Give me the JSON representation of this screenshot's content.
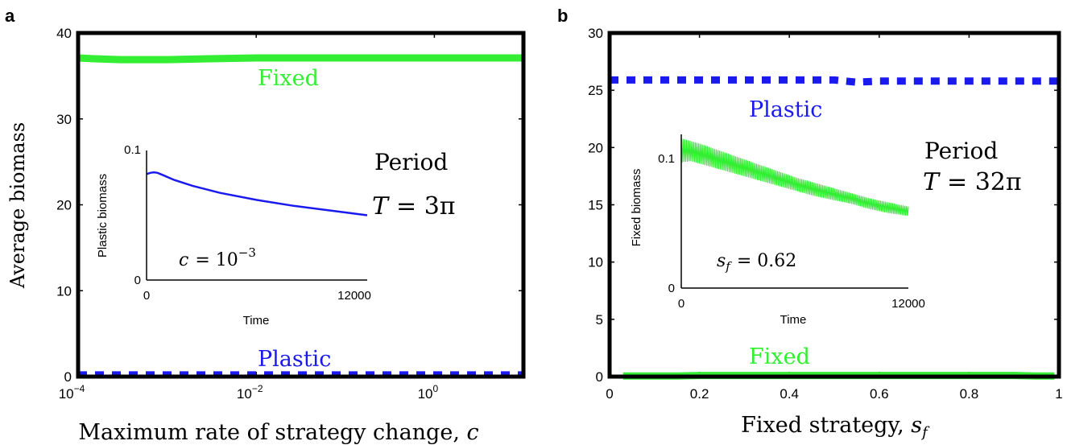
{
  "chart_data": [
    {
      "panel": "a",
      "type": "line",
      "xlabel": "Maximum rate of strategy change, c",
      "ylabel": "Average biomass",
      "xscale": "log",
      "xlim": [
        0.0001,
        10
      ],
      "ylim": [
        0,
        40
      ],
      "xticks": [
        0.0001,
        0.01,
        1
      ],
      "xtick_base": "10",
      "xtick_exponents": [
        "−4",
        "−2",
        "0"
      ],
      "yticks": [
        "0",
        "10",
        "20",
        "30",
        "40"
      ],
      "series": [
        {
          "name": "Fixed",
          "color": "#33ee33",
          "style": "solid",
          "x": [
            0.0001,
            0.00015,
            0.0003,
            0.001,
            0.003,
            0.01,
            0.1,
            1,
            10
          ],
          "y": [
            37.1,
            37.0,
            36.9,
            36.9,
            37.0,
            37.1,
            37.1,
            37.1,
            37.1
          ]
        },
        {
          "name": "Plastic",
          "color": "#1a1aee",
          "style": "dashed",
          "x": [
            0.0001,
            0.001,
            0.01,
            0.1,
            1,
            10
          ],
          "y": [
            0.2,
            0.2,
            0.2,
            0.2,
            0.2,
            0.2
          ]
        }
      ],
      "annotation": [
        "Period",
        "T = 3π"
      ],
      "inset": {
        "type": "line",
        "xlabel": "Time",
        "ylabel": "Plastic biomass",
        "xlim": [
          0,
          12000
        ],
        "ylim": [
          0,
          0.11
        ],
        "xticks": [
          "0",
          "12000"
        ],
        "yticks": [
          "0",
          "0.1"
        ],
        "note": "c = 10⁻³",
        "series": [
          {
            "name": "Plastic",
            "color": "#1a1aee",
            "x": [
              0,
              200,
              400,
              600,
              900,
              1500,
              2500,
              4000,
              6000,
              8000,
              10000,
              12000
            ],
            "y": [
              0.09,
              0.091,
              0.0915,
              0.091,
              0.089,
              0.085,
              0.08,
              0.074,
              0.068,
              0.063,
              0.059,
              0.055
            ]
          }
        ]
      }
    },
    {
      "panel": "b",
      "type": "line",
      "xlabel": "Fixed strategy, sf",
      "ylabel": "",
      "xlim": [
        0,
        1
      ],
      "ylim": [
        0,
        30
      ],
      "xticks": [
        "0",
        "0.2",
        "0.4",
        "0.6",
        "0.8",
        "1"
      ],
      "yticks": [
        "0",
        "5",
        "10",
        "15",
        "20",
        "25",
        "30"
      ],
      "series": [
        {
          "name": "Plastic",
          "color": "#1a1aee",
          "style": "dashed",
          "x": [
            0,
            0.2,
            0.4,
            0.5,
            0.55,
            0.6,
            0.8,
            1
          ],
          "y": [
            25.9,
            25.9,
            25.9,
            25.9,
            25.7,
            25.8,
            25.8,
            25.8
          ]
        },
        {
          "name": "Fixed",
          "color": "#33ee33",
          "style": "solid",
          "x": [
            0.03,
            0.15,
            0.2,
            0.4,
            0.6,
            0.8,
            0.9,
            0.95,
            0.99
          ],
          "y": [
            0.05,
            0.05,
            0.1,
            0.1,
            0.1,
            0.1,
            0.1,
            0.05,
            0.05
          ]
        }
      ],
      "annotation": [
        "Period",
        "T = 32π"
      ],
      "inset": {
        "type": "line",
        "xlabel": "Time",
        "ylabel": "Fixed biomass",
        "xlim": [
          0,
          12000
        ],
        "ylim": [
          0,
          0.115
        ],
        "xticks": [
          "0",
          "12000"
        ],
        "yticks": [
          "0",
          "0.1"
        ],
        "note": "sf = 0.62",
        "series": [
          {
            "name": "Fixed",
            "color": "#33ee33",
            "x": [
              0,
              500,
              1000,
              2000,
              3000,
              4000,
              5000,
              6000,
              7000,
              8000,
              9000,
              10000,
              11000,
              12000
            ],
            "y_high": [
              0.112,
              0.11,
              0.108,
              0.103,
              0.098,
              0.093,
              0.088,
              0.083,
              0.079,
              0.075,
              0.071,
              0.067,
              0.064,
              0.061
            ],
            "y_low": [
              0.094,
              0.095,
              0.093,
              0.089,
              0.085,
              0.081,
              0.077,
              0.073,
              0.069,
              0.066,
              0.063,
              0.059,
              0.056,
              0.054
            ]
          }
        ]
      }
    }
  ],
  "panels": {
    "a": {
      "letter": "a",
      "xlabel_main": "Maximum rate of strategy change, ",
      "xlabel_var": "c",
      "ylabel": "Average biomass",
      "label_fixed": "Fixed",
      "label_plastic": "Plastic",
      "annot_line1": "Period",
      "annot_T": "T",
      "annot_eq": "= 3π",
      "inset_ylabel": "Plastic biomass",
      "inset_xlabel": "Time",
      "inset_note_var": "c",
      "inset_note_eq": "= 10",
      "inset_note_exp": "−3"
    },
    "b": {
      "letter": "b",
      "xlabel_main": "Fixed strategy, ",
      "xlabel_var": "s",
      "xlabel_sub": "f",
      "label_fixed": "Fixed",
      "label_plastic": "Plastic",
      "annot_line1": "Period",
      "annot_T": "T",
      "annot_eq": "= 32π",
      "inset_ylabel": "Fixed biomass",
      "inset_xlabel": "Time",
      "inset_note_var": "s",
      "inset_note_sub": "f",
      "inset_note_eq": "= 0.62"
    }
  }
}
